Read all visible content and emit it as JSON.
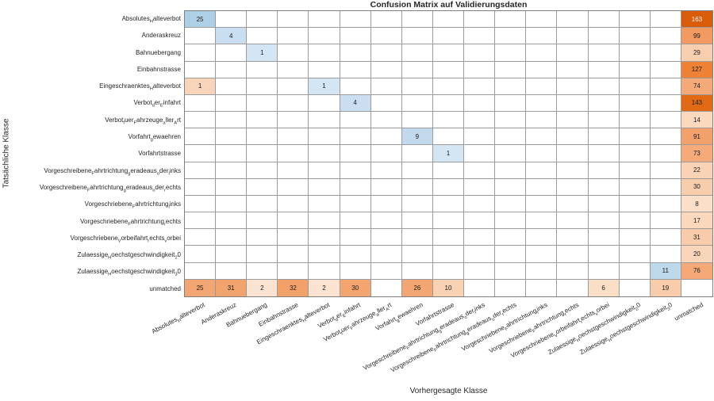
{
  "title": "Confusion Matrix auf Validierungsdaten",
  "axes": {
    "x": "Vorhergesagte Klasse",
    "y": "Tatsächliche Klasse"
  },
  "chart_data": {
    "type": "heatmap",
    "note_label_format": "underscore prefixes render the following character as subscript",
    "classes": [
      "Absolutes_Halteverbot",
      "Anderaskreuz",
      "Bahnuebergang",
      "Einbahnstrasse",
      "Eingeschraenktes_Halteverbot",
      "Verbot_der_Einfahrt",
      "Verbot_fuer_Fahrzeuge_aller_Art",
      "Vorfahrt_gewaehren",
      "Vorfahrtstrasse",
      "Vorgeschreibene_Fahrtrichtung_geradeaus_oder_links",
      "Vorgeschreibene_Fahrtrichtung_geradeaus_oder_rechts",
      "Vorgeschriebene_Fahrtrichtung_links",
      "Vorgeschriebene_Fahrtrichtung_rechts",
      "Vorgeschriebene_Vorbeifahrt_rechts_vorbei",
      "Zulaessige_Hoechstgeschwindigkeit_20",
      "Zulaessige_Hoechstgeschwindigkeit_30",
      "unmatched"
    ],
    "cells": [
      {
        "row": 0,
        "col": 0,
        "value": 25,
        "bg": "#aed0e6",
        "fg": "#1a1a1a"
      },
      {
        "row": 1,
        "col": 1,
        "value": 4,
        "bg": "#c9def1",
        "fg": "#1a1a1a"
      },
      {
        "row": 2,
        "col": 2,
        "value": 1,
        "bg": "#d4e5f4",
        "fg": "#1a1a1a"
      },
      {
        "row": 4,
        "col": 0,
        "value": 1,
        "bg": "#f8d5ba",
        "fg": "#1a1a1a"
      },
      {
        "row": 4,
        "col": 4,
        "value": 1,
        "bg": "#d4e5f4",
        "fg": "#1a1a1a"
      },
      {
        "row": 5,
        "col": 5,
        "value": 4,
        "bg": "#c9def1",
        "fg": "#1a1a1a"
      },
      {
        "row": 7,
        "col": 7,
        "value": 9,
        "bg": "#c3daee",
        "fg": "#1a1a1a"
      },
      {
        "row": 8,
        "col": 8,
        "value": 1,
        "bg": "#d4e5f4",
        "fg": "#1a1a1a"
      },
      {
        "row": 15,
        "col": 15,
        "value": 11,
        "bg": "#bed8ec",
        "fg": "#1a1a1a"
      },
      {
        "row": 0,
        "col": 16,
        "value": 163,
        "bg": "#d85c09",
        "fg": "#ffffff"
      },
      {
        "row": 1,
        "col": 16,
        "value": 99,
        "bg": "#f29a61",
        "fg": "#1a1a1a"
      },
      {
        "row": 2,
        "col": 16,
        "value": 29,
        "bg": "#f8cfae",
        "fg": "#1a1a1a"
      },
      {
        "row": 3,
        "col": 16,
        "value": 127,
        "bg": "#ee8133",
        "fg": "#1a1a1a"
      },
      {
        "row": 4,
        "col": 16,
        "value": 74,
        "bg": "#f4aa78",
        "fg": "#1a1a1a"
      },
      {
        "row": 5,
        "col": 16,
        "value": 143,
        "bg": "#e26a15",
        "fg": "#1a1a1a"
      },
      {
        "row": 6,
        "col": 16,
        "value": 14,
        "bg": "#fbd9bf",
        "fg": "#1a1a1a"
      },
      {
        "row": 7,
        "col": 16,
        "value": 91,
        "bg": "#f2a16c",
        "fg": "#1a1a1a"
      },
      {
        "row": 8,
        "col": 16,
        "value": 73,
        "bg": "#f4ab79",
        "fg": "#1a1a1a"
      },
      {
        "row": 9,
        "col": 16,
        "value": 22,
        "bg": "#fad3b6",
        "fg": "#1a1a1a"
      },
      {
        "row": 10,
        "col": 16,
        "value": 30,
        "bg": "#f8cdab",
        "fg": "#1a1a1a"
      },
      {
        "row": 11,
        "col": 16,
        "value": 8,
        "bg": "#fcdfc9",
        "fg": "#1a1a1a"
      },
      {
        "row": 12,
        "col": 16,
        "value": 17,
        "bg": "#fbd7bc",
        "fg": "#1a1a1a"
      },
      {
        "row": 13,
        "col": 16,
        "value": 31,
        "bg": "#f8ccaa",
        "fg": "#1a1a1a"
      },
      {
        "row": 14,
        "col": 16,
        "value": 20,
        "bg": "#fad5b9",
        "fg": "#1a1a1a"
      },
      {
        "row": 15,
        "col": 16,
        "value": 76,
        "bg": "#f4a976",
        "fg": "#1a1a1a"
      },
      {
        "row": 16,
        "col": 0,
        "value": 25,
        "bg": "#f3a673",
        "fg": "#1a1a1a"
      },
      {
        "row": 16,
        "col": 1,
        "value": 31,
        "bg": "#f2a26d",
        "fg": "#1a1a1a"
      },
      {
        "row": 16,
        "col": 2,
        "value": 2,
        "bg": "#fbe3d1",
        "fg": "#1a1a1a"
      },
      {
        "row": 16,
        "col": 3,
        "value": 32,
        "bg": "#f2a16b",
        "fg": "#1a1a1a"
      },
      {
        "row": 16,
        "col": 4,
        "value": 2,
        "bg": "#fbe3d1",
        "fg": "#1a1a1a"
      },
      {
        "row": 16,
        "col": 5,
        "value": 30,
        "bg": "#f3a46f",
        "fg": "#1a1a1a"
      },
      {
        "row": 16,
        "col": 7,
        "value": 26,
        "bg": "#f3a572",
        "fg": "#1a1a1a"
      },
      {
        "row": 16,
        "col": 8,
        "value": 10,
        "bg": "#f8d2b3",
        "fg": "#1a1a1a"
      },
      {
        "row": 16,
        "col": 13,
        "value": 6,
        "bg": "#fadfc7",
        "fg": "#1a1a1a"
      },
      {
        "row": 16,
        "col": 15,
        "value": 19,
        "bg": "#f9cdab",
        "fg": "#1a1a1a"
      }
    ],
    "layout": {
      "n": 17,
      "grid": true,
      "diagonal_color_scale": "blues",
      "offdiagonal_color_scale": "oranges",
      "empty_cell_color": "#ffffff",
      "grid_line_color": "#9b9b9b"
    }
  }
}
